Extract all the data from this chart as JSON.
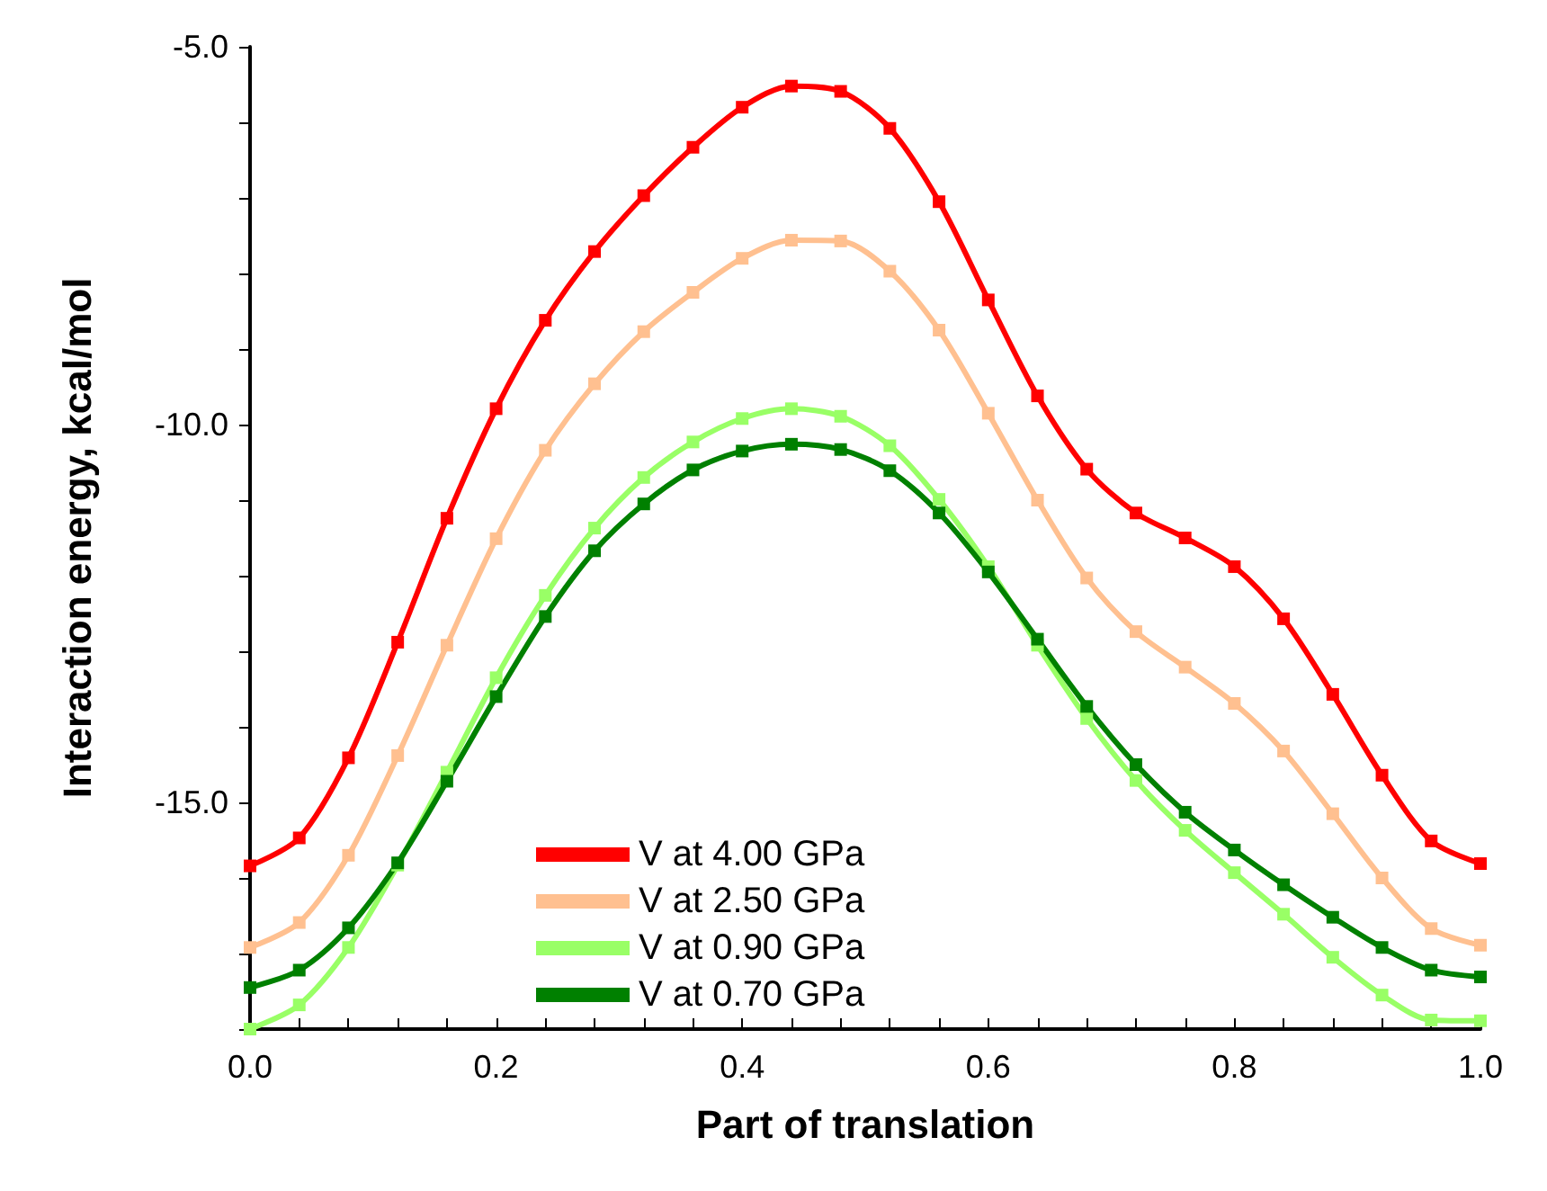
{
  "chart_data": {
    "type": "line",
    "xlabel": "Part of translation",
    "ylabel": "Interaction energy, kcal/mol",
    "x": [
      0,
      0.04,
      0.08,
      0.12,
      0.16,
      0.2,
      0.24,
      0.28,
      0.32,
      0.36,
      0.4,
      0.44,
      0.48,
      0.52,
      0.56,
      0.6,
      0.64,
      0.68,
      0.72,
      0.76,
      0.8,
      0.84,
      0.88,
      0.92,
      0.96,
      1.0
    ],
    "series": [
      {
        "name": "V at 4.00 GPa",
        "color": "#ff0000",
        "values": [
          -15.84,
          -15.47,
          -14.41,
          -12.88,
          -11.24,
          -9.79,
          -8.62,
          -7.71,
          -6.97,
          -6.33,
          -5.8,
          -5.52,
          -5.59,
          -6.08,
          -7.05,
          -8.35,
          -9.62,
          -10.59,
          -11.17,
          -11.5,
          -11.88,
          -12.57,
          -13.57,
          -14.64,
          -15.51,
          -15.81
        ]
      },
      {
        "name": "V at 2.50 GPa",
        "color": "#ffc090",
        "values": [
          -16.92,
          -16.59,
          -15.7,
          -14.38,
          -12.92,
          -11.51,
          -10.34,
          -9.46,
          -8.77,
          -8.25,
          -7.8,
          -7.56,
          -7.57,
          -7.97,
          -8.75,
          -9.85,
          -11.0,
          -12.03,
          -12.74,
          -13.21,
          -13.69,
          -14.32,
          -15.15,
          -16.0,
          -16.67,
          -16.89
        ]
      },
      {
        "name": "V at 0.90 GPa",
        "color": "#99ff66",
        "values": [
          -18.0,
          -17.68,
          -16.92,
          -15.83,
          -14.6,
          -13.35,
          -12.26,
          -11.37,
          -10.7,
          -10.23,
          -9.92,
          -9.79,
          -9.89,
          -10.28,
          -10.99,
          -11.88,
          -12.92,
          -13.89,
          -14.71,
          -15.37,
          -15.93,
          -16.48,
          -17.05,
          -17.55,
          -17.88,
          -17.89
        ]
      },
      {
        "name": "V at 0.70 GPa",
        "color": "#008000",
        "values": [
          -17.45,
          -17.22,
          -16.66,
          -15.8,
          -14.72,
          -13.6,
          -12.54,
          -11.67,
          -11.05,
          -10.6,
          -10.35,
          -10.26,
          -10.33,
          -10.61,
          -11.17,
          -11.95,
          -12.84,
          -13.73,
          -14.5,
          -15.13,
          -15.63,
          -16.09,
          -16.52,
          -16.92,
          -17.22,
          -17.31
        ]
      }
    ],
    "xlim": [
      0,
      1
    ],
    "xticks": [
      {
        "value": 0,
        "label": "0.0"
      },
      {
        "value": 0.04,
        "label": null
      },
      {
        "value": 0.08,
        "label": null
      },
      {
        "value": 0.12,
        "label": null
      },
      {
        "value": 0.16,
        "label": null
      },
      0.2,
      {
        "value": 0.24,
        "label": null
      },
      {
        "value": 0.28,
        "label": null
      },
      {
        "value": 0.32,
        "label": null
      },
      {
        "value": 0.36,
        "label": null
      },
      0.4,
      {
        "value": 0.44,
        "label": null
      },
      {
        "value": 0.48,
        "label": null
      },
      {
        "value": 0.52,
        "label": null
      },
      {
        "value": 0.56,
        "label": null
      },
      0.6,
      {
        "value": 0.64,
        "label": null
      },
      {
        "value": 0.68,
        "label": null
      },
      {
        "value": 0.72,
        "label": null
      },
      {
        "value": 0.76,
        "label": null
      },
      0.8,
      {
        "value": 0.84,
        "label": null
      },
      {
        "value": 0.88,
        "label": null
      },
      {
        "value": 0.92,
        "label": null
      },
      {
        "value": 0.96,
        "label": null
      },
      {
        "value": 1,
        "label": "1.0"
      }
    ],
    "ylim": [
      -18,
      -5
    ],
    "yticks": [
      {
        "value": -18,
        "label": null
      },
      {
        "value": -17,
        "label": null
      },
      {
        "value": -16,
        "label": null
      },
      {
        "value": -15,
        "label": "-15.0"
      },
      {
        "value": -14,
        "label": null
      },
      {
        "value": -13,
        "label": null
      },
      {
        "value": -12,
        "label": null
      },
      {
        "value": -11,
        "label": null
      },
      {
        "value": -10,
        "label": "-10.0"
      },
      {
        "value": -9,
        "label": null
      },
      {
        "value": -8,
        "label": null
      },
      {
        "value": -7,
        "label": null
      },
      {
        "value": -6,
        "label": null
      },
      {
        "value": -5,
        "label": "-5.0"
      }
    ],
    "legend": "bottom left",
    "marker": "square",
    "line_style": "solid",
    "grid": false
  }
}
